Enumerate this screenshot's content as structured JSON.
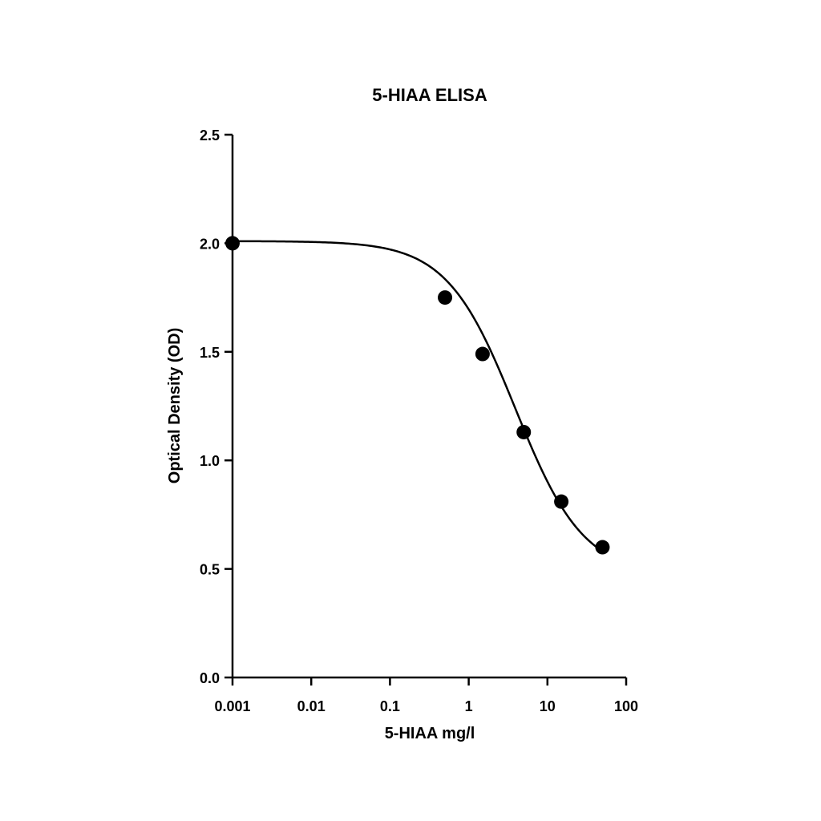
{
  "chart_data": {
    "type": "scatter",
    "title": "5-HIAA ELISA",
    "xlabel": "5-HIAA mg/l",
    "ylabel": "Optical Density (OD)",
    "x_scale": "log",
    "xlim": [
      0.001,
      100
    ],
    "ylim": [
      0,
      2.5
    ],
    "x_ticks": [
      0.001,
      0.01,
      0.1,
      1,
      10,
      100
    ],
    "x_tick_labels": [
      "0.001",
      "0.01",
      "0.1",
      "1",
      "10",
      "100"
    ],
    "y_ticks": [
      0,
      0.5,
      1,
      1.5,
      2,
      2.5
    ],
    "y_tick_labels": [
      "0.0",
      "0.5",
      "1.0",
      "1.5",
      "2.0",
      "2.5"
    ],
    "grid": false,
    "legend": "none",
    "series": [
      {
        "x": [
          0.001,
          0.5,
          1.5,
          5,
          15,
          50
        ],
        "y": [
          2.0,
          1.75,
          1.49,
          1.13,
          0.81,
          0.6
        ]
      }
    ],
    "fit_curve": {
      "model": "4PL",
      "top": 2.01,
      "bottom": 0.47,
      "ec50": 3.9,
      "hill": 1.0
    }
  }
}
